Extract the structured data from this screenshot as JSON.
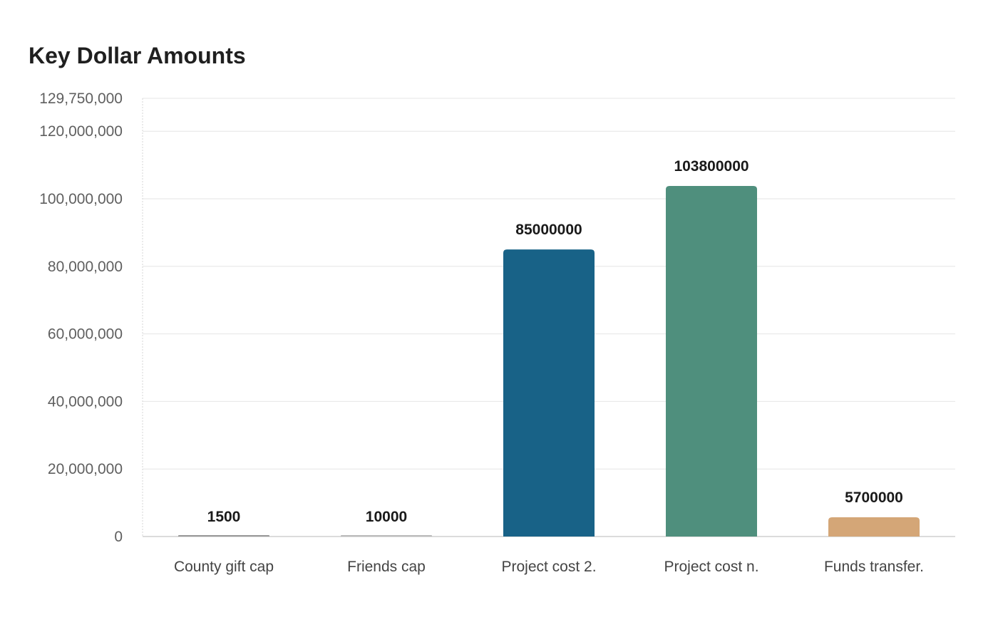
{
  "chart_data": {
    "type": "bar",
    "title": "Key Dollar Amounts",
    "xlabel": "",
    "ylabel": "",
    "categories": [
      "County gift cap",
      "Friends cap",
      "Project cost 2.",
      "Project cost n.",
      "Funds transfer."
    ],
    "values": [
      1500,
      10000,
      85000000,
      103800000,
      5700000
    ],
    "data_labels": [
      "1500",
      "10000",
      "85000000",
      "103800000",
      "5700000"
    ],
    "colors": [
      "#9a9a9a",
      "#bcbcbc",
      "#186287",
      "#4f8f7d",
      "#d4a677"
    ],
    "ylim": [
      0,
      129750000
    ],
    "yticks": [
      0,
      20000000,
      40000000,
      60000000,
      80000000,
      100000000,
      120000000,
      129750000
    ],
    "ytick_labels": [
      "0",
      "20,000,000",
      "40,000,000",
      "60,000,000",
      "80,000,000",
      "100,000,000",
      "120,000,000",
      "129,750,000"
    ],
    "grid": true,
    "legend": "none"
  }
}
